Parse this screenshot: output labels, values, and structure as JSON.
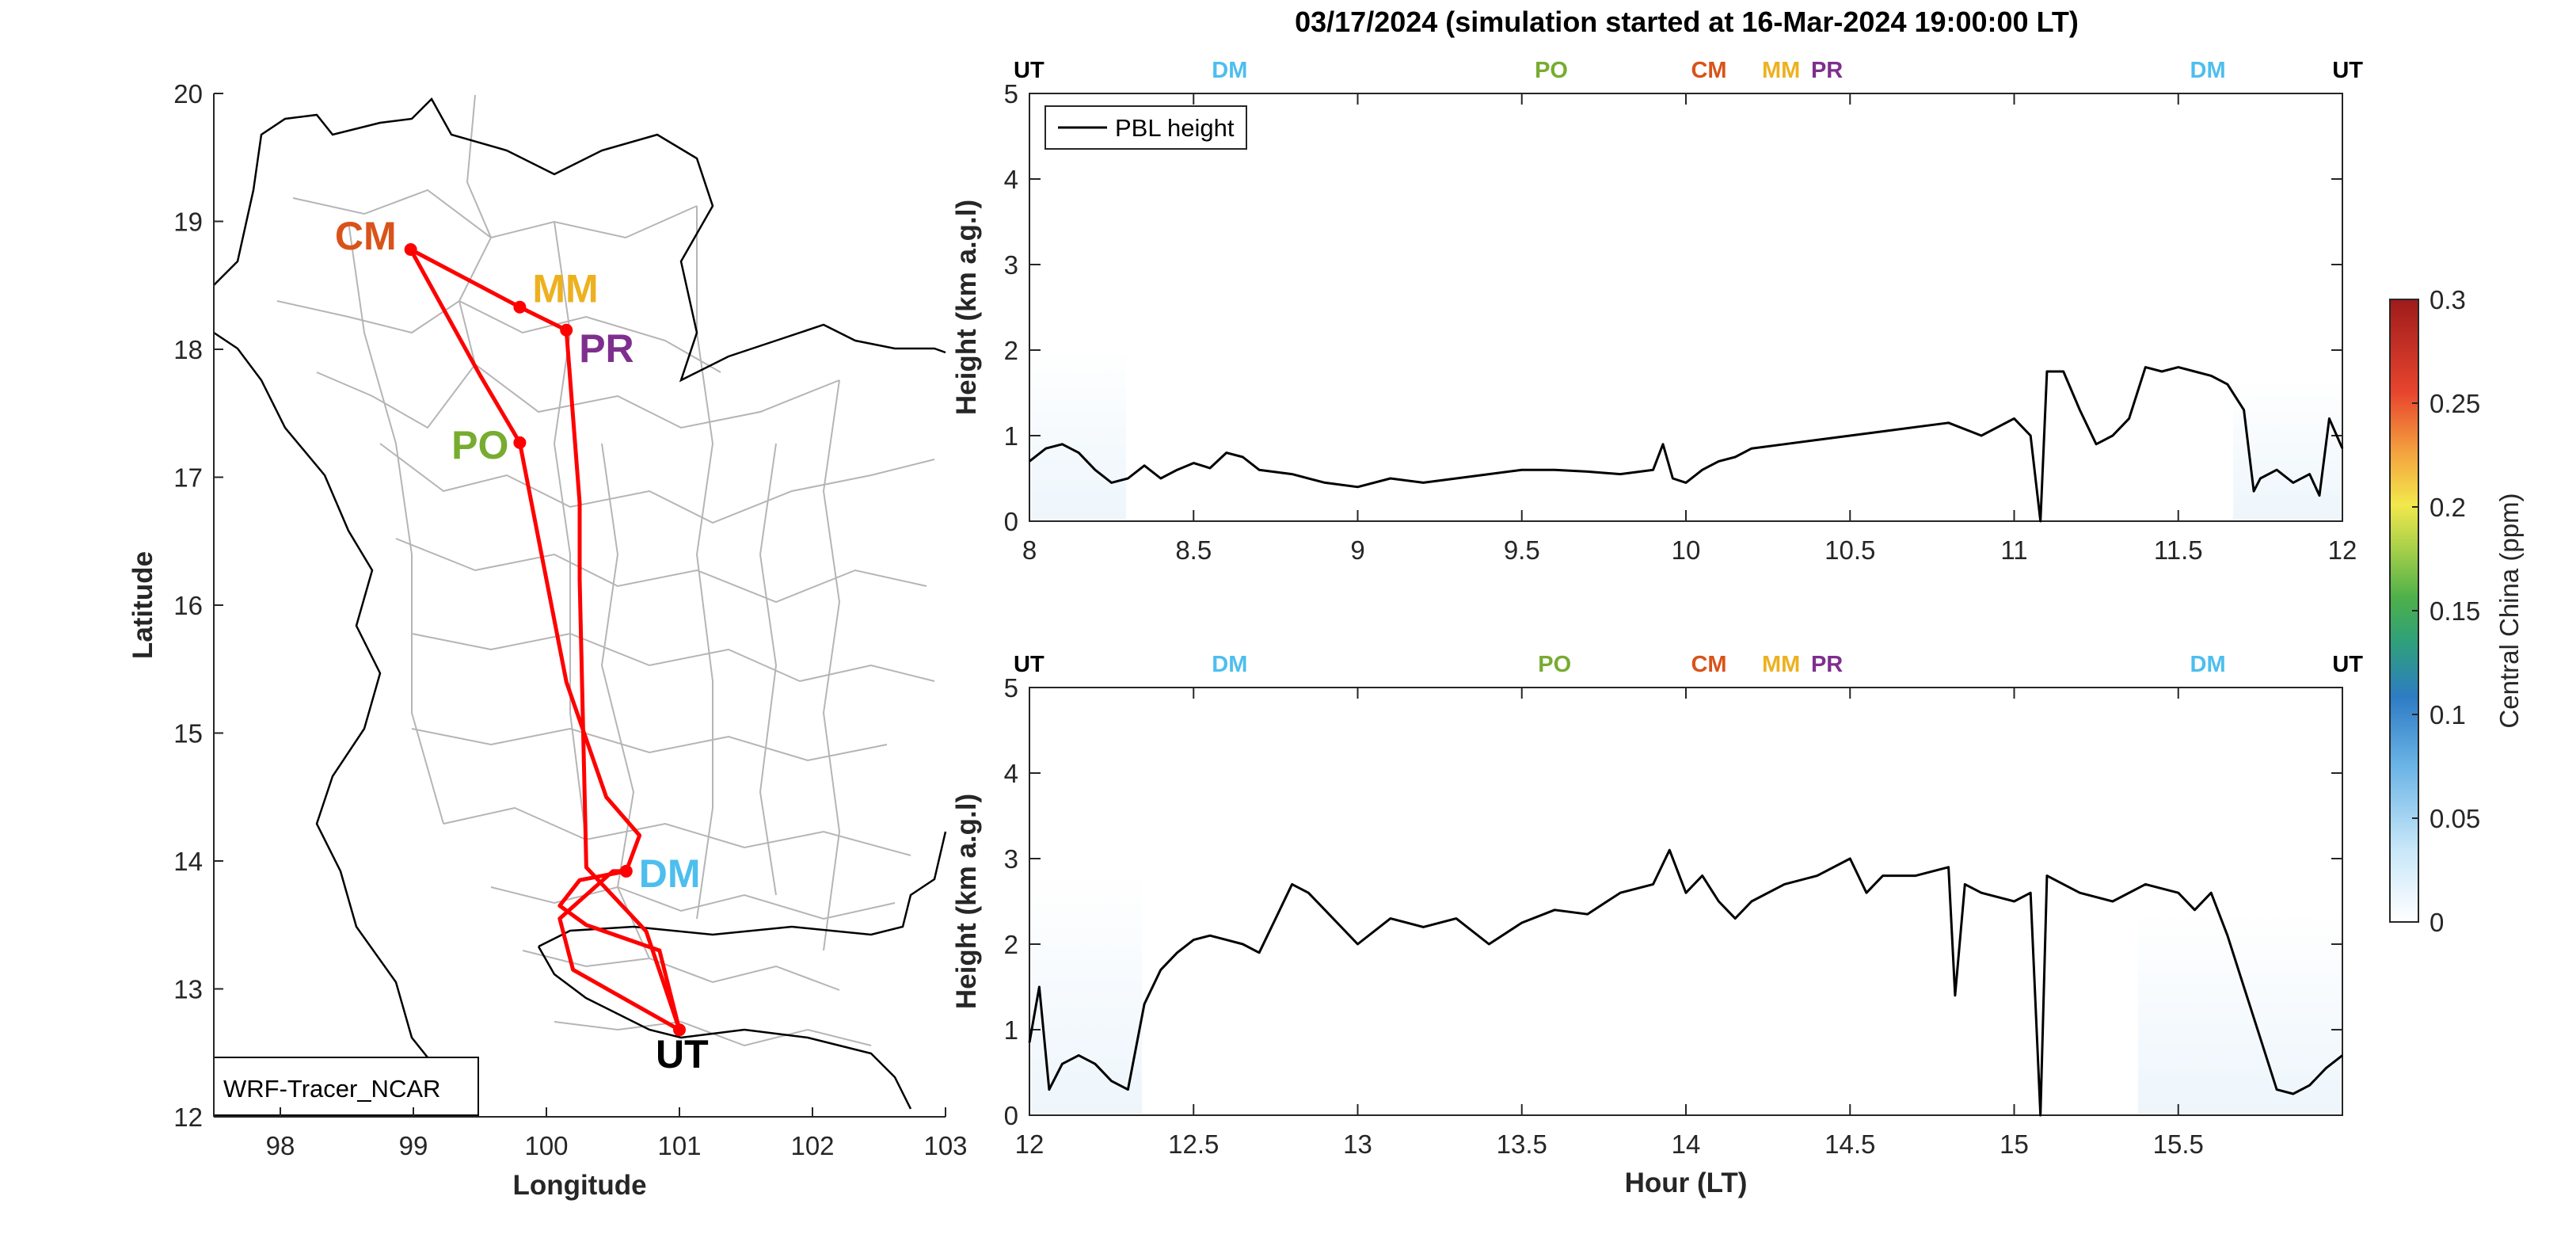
{
  "title": "03/17/2024 (simulation started at 16-Mar-2024 19:00:00 LT)",
  "colors": {
    "UT": "#000000",
    "DM": "#4DBEEE",
    "PO": "#77AC30",
    "CM": "#D95319",
    "MM": "#EDB120",
    "PR": "#7E2F8E",
    "track": "#FF0000",
    "borders": "#B5B5B5",
    "coast": "#000000",
    "pbl": "#000000"
  },
  "map": {
    "xlabel": "Longitude",
    "ylabel": "Latitude",
    "xlim": [
      97.5,
      103
    ],
    "ylim": [
      12,
      20
    ],
    "xticks": [
      "98",
      "99",
      "100",
      "101",
      "102",
      "103"
    ],
    "yticks": [
      "12",
      "13",
      "14",
      "15",
      "16",
      "17",
      "18",
      "19",
      "20"
    ],
    "model_label": "WRF-Tracer_NCAR",
    "sites": [
      {
        "name": "CM",
        "lon": 98.98,
        "lat": 18.78
      },
      {
        "name": "MM",
        "lon": 99.8,
        "lat": 18.33
      },
      {
        "name": "PR",
        "lon": 100.15,
        "lat": 18.15
      },
      {
        "name": "PO",
        "lon": 99.8,
        "lat": 17.27
      },
      {
        "name": "DM",
        "lon": 100.6,
        "lat": 13.92
      },
      {
        "name": "UT",
        "lon": 101.0,
        "lat": 12.68
      }
    ],
    "track": [
      [
        101.0,
        12.68
      ],
      [
        100.75,
        13.45
      ],
      [
        100.3,
        13.95
      ],
      [
        100.25,
        16.2
      ],
      [
        100.25,
        16.8
      ],
      [
        100.15,
        18.15
      ],
      [
        99.8,
        18.33
      ],
      [
        98.98,
        18.78
      ],
      [
        99.5,
        17.8
      ],
      [
        99.8,
        17.27
      ],
      [
        100.15,
        15.4
      ],
      [
        100.45,
        14.5
      ],
      [
        100.7,
        14.2
      ],
      [
        100.6,
        13.92
      ],
      [
        100.25,
        13.85
      ],
      [
        100.1,
        13.65
      ],
      [
        100.3,
        13.5
      ],
      [
        100.85,
        13.3
      ],
      [
        101.0,
        12.68
      ],
      [
        100.2,
        13.15
      ],
      [
        100.1,
        13.55
      ],
      [
        100.5,
        13.92
      ],
      [
        100.6,
        13.92
      ]
    ]
  },
  "panels": [
    {
      "xlim": [
        8,
        12
      ],
      "xticks": [
        "8",
        "8.5",
        "9",
        "9.5",
        "10",
        "10.5",
        "11",
        "11.5",
        "12"
      ],
      "xtick_values": [
        8,
        8.5,
        9,
        9.5,
        10,
        10.5,
        11,
        11.5,
        12
      ],
      "xlabel": "",
      "markers": [
        {
          "name": "UT",
          "t": 8.0
        },
        {
          "name": "DM",
          "t": 8.61
        },
        {
          "name": "PO",
          "t": 9.59
        },
        {
          "name": "CM",
          "t": 10.07
        },
        {
          "name": "MM",
          "t": 10.3
        },
        {
          "name": "PR",
          "t": 10.41
        },
        {
          "name": "DM",
          "t": 11.59
        },
        {
          "name": "UT",
          "t": 12.0
        }
      ]
    },
    {
      "xlim": [
        12,
        16
      ],
      "xticks": [
        "12",
        "12.5",
        "13",
        "13.5",
        "14",
        "14.5",
        "15",
        "15.5"
      ],
      "xtick_values": [
        12,
        12.5,
        13,
        13.5,
        14,
        14.5,
        15,
        15.5
      ],
      "xlabel": "Hour (LT)",
      "markers": [
        {
          "name": "UT",
          "t": 12.0
        },
        {
          "name": "DM",
          "t": 12.61
        },
        {
          "name": "PO",
          "t": 13.6
        },
        {
          "name": "CM",
          "t": 14.07
        },
        {
          "name": "MM",
          "t": 14.3
        },
        {
          "name": "PR",
          "t": 14.41
        },
        {
          "name": "DM",
          "t": 15.59
        },
        {
          "name": "UT",
          "t": 15.98
        }
      ]
    }
  ],
  "shared_axes": {
    "ylabel": "Height (km a.g.l)",
    "ylim": [
      0,
      5
    ],
    "yticks": [
      "0",
      "1",
      "2",
      "3",
      "4",
      "5"
    ]
  },
  "legend": {
    "label": "PBL height",
    "placement": "top-left"
  },
  "colorbar": {
    "label": "Central China (ppm)",
    "range": [
      0,
      0.3
    ],
    "ticks": [
      "0",
      "0.05",
      "0.1",
      "0.15",
      "0.2",
      "0.25",
      "0.3"
    ]
  },
  "chart_data": [
    {
      "type": "line",
      "title": "",
      "xlabel": "",
      "ylabel": "Height (km a.g.l)",
      "xlim": [
        8,
        12
      ],
      "ylim": [
        0,
        5
      ],
      "grid": false,
      "series": [
        {
          "name": "PBL height",
          "x": [
            8.0,
            8.05,
            8.1,
            8.15,
            8.2,
            8.25,
            8.3,
            8.35,
            8.4,
            8.45,
            8.5,
            8.55,
            8.6,
            8.65,
            8.7,
            8.8,
            8.9,
            9.0,
            9.1,
            9.2,
            9.3,
            9.4,
            9.5,
            9.6,
            9.7,
            9.8,
            9.9,
            9.93,
            9.96,
            10.0,
            10.05,
            10.1,
            10.15,
            10.2,
            10.3,
            10.4,
            10.5,
            10.6,
            10.7,
            10.8,
            10.9,
            10.95,
            11.0,
            11.05,
            11.08,
            11.1,
            11.15,
            11.2,
            11.25,
            11.3,
            11.35,
            11.4,
            11.45,
            11.5,
            11.55,
            11.6,
            11.65,
            11.7,
            11.73,
            11.75,
            11.8,
            11.85,
            11.9,
            11.93,
            11.96,
            12.0
          ],
          "y": [
            0.7,
            0.85,
            0.9,
            0.8,
            0.6,
            0.45,
            0.5,
            0.65,
            0.5,
            0.6,
            0.68,
            0.62,
            0.8,
            0.75,
            0.6,
            0.55,
            0.45,
            0.4,
            0.5,
            0.45,
            0.5,
            0.55,
            0.6,
            0.6,
            0.58,
            0.55,
            0.6,
            0.9,
            0.5,
            0.45,
            0.6,
            0.7,
            0.75,
            0.85,
            0.9,
            0.95,
            1.0,
            1.05,
            1.1,
            1.15,
            1.0,
            1.1,
            1.2,
            1.0,
            0.0,
            1.75,
            1.75,
            1.3,
            0.9,
            1.0,
            1.2,
            1.8,
            1.75,
            1.8,
            1.75,
            1.7,
            1.6,
            1.3,
            0.35,
            0.5,
            0.6,
            0.45,
            0.55,
            0.3,
            1.2,
            0.85
          ]
        }
      ]
    },
    {
      "type": "line",
      "title": "",
      "xlabel": "Hour (LT)",
      "ylabel": "Height (km a.g.l)",
      "xlim": [
        12,
        16
      ],
      "ylim": [
        0,
        5
      ],
      "grid": false,
      "series": [
        {
          "name": "PBL height",
          "x": [
            12.0,
            12.03,
            12.06,
            12.1,
            12.15,
            12.2,
            12.25,
            12.3,
            12.35,
            12.4,
            12.45,
            12.5,
            12.55,
            12.6,
            12.65,
            12.7,
            12.75,
            12.8,
            12.85,
            12.9,
            13.0,
            13.1,
            13.2,
            13.3,
            13.4,
            13.5,
            13.6,
            13.7,
            13.8,
            13.9,
            13.95,
            14.0,
            14.05,
            14.1,
            14.15,
            14.2,
            14.3,
            14.4,
            14.5,
            14.55,
            14.6,
            14.7,
            14.8,
            14.82,
            14.85,
            14.9,
            15.0,
            15.05,
            15.08,
            15.1,
            15.15,
            15.2,
            15.3,
            15.4,
            15.5,
            15.55,
            15.6,
            15.65,
            15.7,
            15.75,
            15.8,
            15.85,
            15.9,
            15.95,
            16.0
          ],
          "y": [
            0.85,
            1.5,
            0.3,
            0.6,
            0.7,
            0.6,
            0.4,
            0.3,
            1.3,
            1.7,
            1.9,
            2.05,
            2.1,
            2.05,
            2.0,
            1.9,
            2.3,
            2.7,
            2.6,
            2.4,
            2.0,
            2.3,
            2.2,
            2.3,
            2.0,
            2.25,
            2.4,
            2.35,
            2.6,
            2.7,
            3.1,
            2.6,
            2.8,
            2.5,
            2.3,
            2.5,
            2.7,
            2.8,
            3.0,
            2.6,
            2.8,
            2.8,
            2.9,
            1.4,
            2.7,
            2.6,
            2.5,
            2.6,
            0.0,
            2.8,
            2.7,
            2.6,
            2.5,
            2.7,
            2.6,
            2.4,
            2.6,
            2.1,
            1.5,
            0.9,
            0.3,
            0.25,
            0.35,
            0.55,
            0.7
          ]
        }
      ]
    }
  ]
}
